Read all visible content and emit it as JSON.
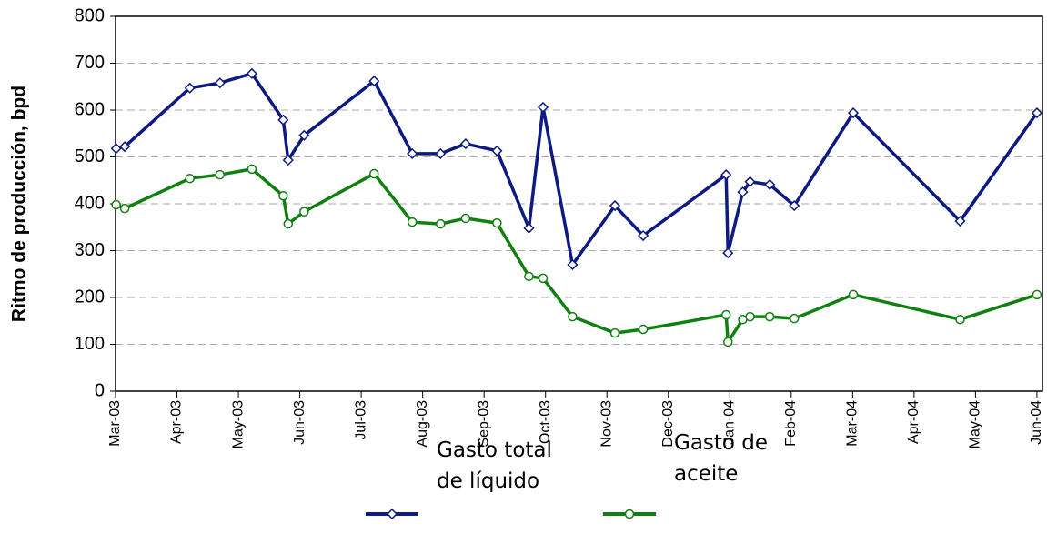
{
  "chart_data": {
    "type": "line",
    "ylabel": "Ritmo de producción, bpd",
    "x": [
      0.01,
      0.15,
      1.21,
      1.7,
      2.22,
      2.73,
      2.81,
      3.07,
      4.21,
      4.83,
      5.29,
      5.7,
      6.21,
      6.73,
      6.96,
      7.44,
      8.13,
      8.59,
      9.94,
      9.97,
      10.21,
      10.33,
      10.65,
      11.05,
      12.01,
      13.75,
      15.0
    ],
    "series": [
      {
        "name": "Gasto total de líquido",
        "color": "#0d1a80",
        "marker": "diamond",
        "values": [
          518,
          522,
          647,
          658,
          678,
          579,
          493,
          546,
          662,
          507,
          507,
          528,
          513,
          348,
          606,
          270,
          396,
          332,
          462,
          295,
          425,
          447,
          441,
          396,
          594,
          363,
          594
        ]
      },
      {
        "name": "Gasto de aceite",
        "color": "#108010",
        "marker": "circle",
        "values": [
          398,
          390,
          454,
          462,
          474,
          417,
          357,
          383,
          464,
          361,
          357,
          369,
          359,
          245,
          241,
          159,
          124,
          132,
          163,
          105,
          153,
          159,
          159,
          155,
          206,
          153,
          206
        ]
      }
    ],
    "xlim": [
      0,
      15.09
    ],
    "xticks": [
      {
        "value": 0,
        "label": "Mar-03"
      },
      {
        "value": 1,
        "label": "Apr-03"
      },
      {
        "value": 2,
        "label": "May-03"
      },
      {
        "value": 3,
        "label": "Jun-03"
      },
      {
        "value": 4,
        "label": "Jul-03"
      },
      {
        "value": 5,
        "label": "Aug-03"
      },
      {
        "value": 6,
        "label": "Sep-03"
      },
      {
        "value": 7,
        "label": "Oct-03"
      },
      {
        "value": 8,
        "label": "Nov-03"
      },
      {
        "value": 9,
        "label": "Dec-03"
      },
      {
        "value": 10,
        "label": "Jan-04"
      },
      {
        "value": 11,
        "label": "Feb-04"
      },
      {
        "value": 12,
        "label": "Mar-04"
      },
      {
        "value": 13,
        "label": "Apr-04"
      },
      {
        "value": 14,
        "label": "May-04"
      },
      {
        "value": 15,
        "label": "Jun-04"
      }
    ],
    "ylim": [
      0,
      800
    ],
    "yticks": [
      0,
      100,
      200,
      300,
      400,
      500,
      600,
      700,
      800
    ],
    "grid": true,
    "legend": "bottom"
  }
}
